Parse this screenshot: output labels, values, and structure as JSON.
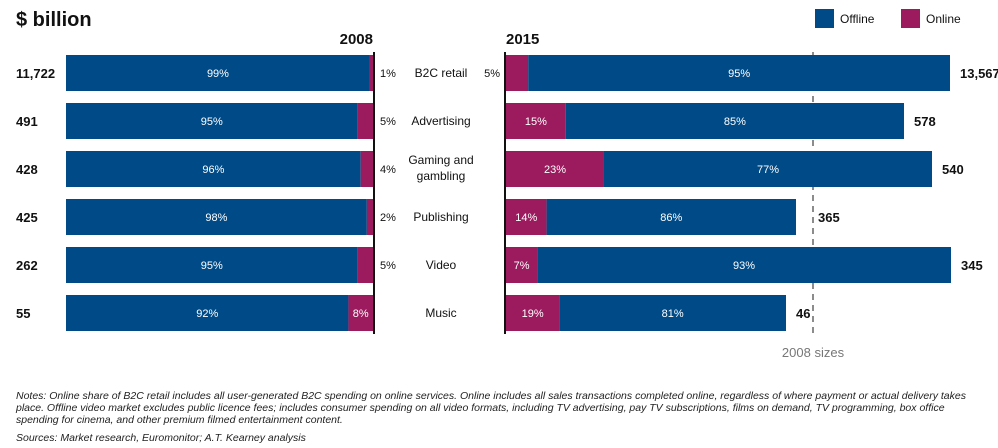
{
  "chart_data": {
    "type": "bar",
    "orientation": "horizontal",
    "stacked": true,
    "unit_label": "$ billion",
    "panels": [
      {
        "title": "2008",
        "totals": [
          11722,
          491,
          428,
          425,
          262,
          55
        ]
      },
      {
        "title": "2015",
        "totals": [
          13567,
          578,
          540,
          365,
          345,
          46
        ]
      }
    ],
    "categories": [
      "B2C retail",
      "Advertising",
      "Gaming and gambling",
      "Publishing",
      "Video",
      "Music"
    ],
    "total_labels_2008": [
      "11,722",
      "491",
      "428",
      "425",
      "262",
      "55"
    ],
    "total_labels_2015": [
      "13,567",
      "578",
      "540",
      "365",
      "345",
      "46"
    ],
    "series": [
      {
        "name": "Offline",
        "color": "#004b87",
        "values_2008": [
          99,
          95,
          96,
          98,
          95,
          92
        ],
        "values_2015": [
          95,
          85,
          77,
          86,
          93,
          81
        ]
      },
      {
        "name": "Online",
        "color": "#9b1b5e",
        "values_2008": [
          1,
          5,
          4,
          2,
          5,
          8
        ],
        "values_2015": [
          5,
          15,
          23,
          14,
          7,
          19
        ]
      }
    ],
    "reference_line": {
      "label": "2008 sizes"
    },
    "legend_position": "top-right",
    "grid": false
  },
  "notes": "Notes: Online share of B2C retail includes all user-generated B2C spending on online services. Online includes all sales transactions completed online, regardless of where payment or actual delivery takes place. Offline video market excludes public licence fees; includes consumer spending on all video formats, including TV advertising, pay TV subscriptions, films on demand, TV programming, box office spending for cinema, and other premium filmed entertainment content.",
  "sources": "Sources: Market research, Euromonitor; A.T. Kearney analysis"
}
